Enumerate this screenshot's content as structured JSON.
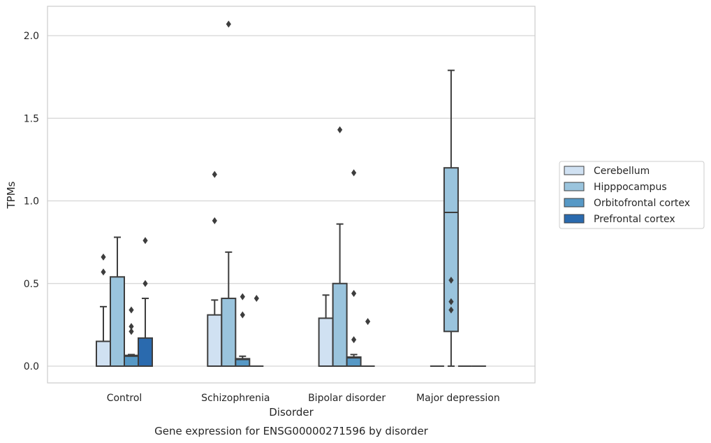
{
  "chart_data": {
    "type": "box",
    "caption": "Gene expression for ENSG00000271596 by disorder",
    "xlabel": "Disorder",
    "ylabel": "TPMs",
    "ylim": [
      -0.1,
      2.18
    ],
    "yticks": [
      "0.0",
      "0.5",
      "1.0",
      "1.5",
      "2.0"
    ],
    "grid": "horizontal",
    "legend_position": "right",
    "categories": [
      "Control",
      "Schizophrenia",
      "Bipolar disorder",
      "Major depression"
    ],
    "series": [
      {
        "name": "Cerebellum",
        "color": "#d0e1f2",
        "boxes": [
          {
            "q1": 0.0,
            "median": 0.0,
            "q3": 0.15,
            "whisker_low": 0.0,
            "whisker_high": 0.36,
            "outliers": [
              0.57,
              0.66
            ]
          },
          {
            "q1": 0.0,
            "median": 0.0,
            "q3": 0.31,
            "whisker_low": 0.0,
            "whisker_high": 0.4,
            "outliers": [
              0.88,
              1.16
            ]
          },
          {
            "q1": 0.0,
            "median": 0.0,
            "q3": 0.29,
            "whisker_low": 0.0,
            "whisker_high": 0.43,
            "outliers": []
          },
          {
            "q1": 0.0,
            "median": 0.0,
            "q3": 0.0,
            "whisker_low": 0.0,
            "whisker_high": 0.0,
            "outliers": []
          }
        ]
      },
      {
        "name": "Hipppocampus",
        "color": "#9ac4dd",
        "boxes": [
          {
            "q1": 0.0,
            "median": 0.0,
            "q3": 0.54,
            "whisker_low": 0.0,
            "whisker_high": 0.78,
            "outliers": []
          },
          {
            "q1": 0.0,
            "median": 0.0,
            "q3": 0.41,
            "whisker_low": 0.0,
            "whisker_high": 0.69,
            "outliers": [
              2.07
            ]
          },
          {
            "q1": 0.0,
            "median": 0.0,
            "q3": 0.5,
            "whisker_low": 0.0,
            "whisker_high": 0.86,
            "outliers": [
              1.43
            ]
          },
          {
            "q1": 0.21,
            "median": 0.93,
            "q3": 1.2,
            "whisker_low": 0.0,
            "whisker_high": 1.79,
            "outliers": [
              0.34,
              0.39,
              0.52
            ]
          }
        ]
      },
      {
        "name": "Orbitofrontal cortex",
        "color": "#5799c6",
        "boxes": [
          {
            "q1": 0.0,
            "median": 0.06,
            "q3": 0.065,
            "whisker_low": 0.0,
            "whisker_high": 0.07,
            "outliers": [
              0.21,
              0.24,
              0.34
            ]
          },
          {
            "q1": 0.0,
            "median": 0.04,
            "q3": 0.045,
            "whisker_low": 0.0,
            "whisker_high": 0.06,
            "outliers": [
              0.31,
              0.42
            ]
          },
          {
            "q1": 0.0,
            "median": 0.05,
            "q3": 0.055,
            "whisker_low": 0.0,
            "whisker_high": 0.07,
            "outliers": [
              0.16,
              0.44,
              1.17
            ]
          },
          {
            "q1": 0.0,
            "median": 0.0,
            "q3": 0.0,
            "whisker_low": 0.0,
            "whisker_high": 0.0,
            "outliers": []
          }
        ]
      },
      {
        "name": "Prefrontal cortex",
        "color": "#2a6aae",
        "boxes": [
          {
            "q1": 0.0,
            "median": 0.0,
            "q3": 0.17,
            "whisker_low": 0.0,
            "whisker_high": 0.41,
            "outliers": [
              0.5,
              0.76
            ]
          },
          {
            "q1": 0.0,
            "median": 0.0,
            "q3": 0.0,
            "whisker_low": 0.0,
            "whisker_high": 0.0,
            "outliers": [
              0.41
            ]
          },
          {
            "q1": 0.0,
            "median": 0.0,
            "q3": 0.0,
            "whisker_low": 0.0,
            "whisker_high": 0.0,
            "outliers": [
              0.27
            ]
          },
          {
            "q1": 0.0,
            "median": 0.0,
            "q3": 0.0,
            "whisker_low": 0.0,
            "whisker_high": 0.0,
            "outliers": []
          }
        ]
      }
    ]
  }
}
